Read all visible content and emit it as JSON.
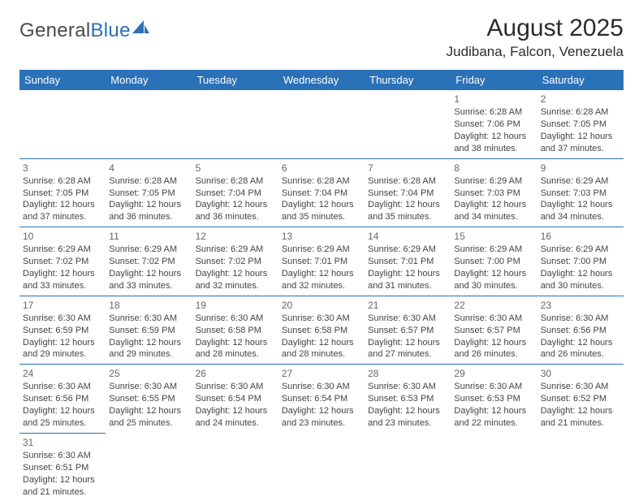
{
  "logo": {
    "text1": "General",
    "text2": "Blue"
  },
  "title": "August 2025",
  "location": "Judibana, Falcon, Venezuela",
  "colors": {
    "accent": "#2a71b8",
    "text": "#333333",
    "header_bg": "#2a71b8",
    "header_fg": "#ffffff"
  },
  "weekdays": [
    "Sunday",
    "Monday",
    "Tuesday",
    "Wednesday",
    "Thursday",
    "Friday",
    "Saturday"
  ],
  "weeks": [
    [
      null,
      null,
      null,
      null,
      null,
      {
        "d": "1",
        "sr": "6:28 AM",
        "ss": "7:06 PM",
        "dl1": "12 hours",
        "dl2": "and 38 minutes."
      },
      {
        "d": "2",
        "sr": "6:28 AM",
        "ss": "7:05 PM",
        "dl1": "12 hours",
        "dl2": "and 37 minutes."
      }
    ],
    [
      {
        "d": "3",
        "sr": "6:28 AM",
        "ss": "7:05 PM",
        "dl1": "12 hours",
        "dl2": "and 37 minutes."
      },
      {
        "d": "4",
        "sr": "6:28 AM",
        "ss": "7:05 PM",
        "dl1": "12 hours",
        "dl2": "and 36 minutes."
      },
      {
        "d": "5",
        "sr": "6:28 AM",
        "ss": "7:04 PM",
        "dl1": "12 hours",
        "dl2": "and 36 minutes."
      },
      {
        "d": "6",
        "sr": "6:28 AM",
        "ss": "7:04 PM",
        "dl1": "12 hours",
        "dl2": "and 35 minutes."
      },
      {
        "d": "7",
        "sr": "6:28 AM",
        "ss": "7:04 PM",
        "dl1": "12 hours",
        "dl2": "and 35 minutes."
      },
      {
        "d": "8",
        "sr": "6:29 AM",
        "ss": "7:03 PM",
        "dl1": "12 hours",
        "dl2": "and 34 minutes."
      },
      {
        "d": "9",
        "sr": "6:29 AM",
        "ss": "7:03 PM",
        "dl1": "12 hours",
        "dl2": "and 34 minutes."
      }
    ],
    [
      {
        "d": "10",
        "sr": "6:29 AM",
        "ss": "7:02 PM",
        "dl1": "12 hours",
        "dl2": "and 33 minutes."
      },
      {
        "d": "11",
        "sr": "6:29 AM",
        "ss": "7:02 PM",
        "dl1": "12 hours",
        "dl2": "and 33 minutes."
      },
      {
        "d": "12",
        "sr": "6:29 AM",
        "ss": "7:02 PM",
        "dl1": "12 hours",
        "dl2": "and 32 minutes."
      },
      {
        "d": "13",
        "sr": "6:29 AM",
        "ss": "7:01 PM",
        "dl1": "12 hours",
        "dl2": "and 32 minutes."
      },
      {
        "d": "14",
        "sr": "6:29 AM",
        "ss": "7:01 PM",
        "dl1": "12 hours",
        "dl2": "and 31 minutes."
      },
      {
        "d": "15",
        "sr": "6:29 AM",
        "ss": "7:00 PM",
        "dl1": "12 hours",
        "dl2": "and 30 minutes."
      },
      {
        "d": "16",
        "sr": "6:29 AM",
        "ss": "7:00 PM",
        "dl1": "12 hours",
        "dl2": "and 30 minutes."
      }
    ],
    [
      {
        "d": "17",
        "sr": "6:30 AM",
        "ss": "6:59 PM",
        "dl1": "12 hours",
        "dl2": "and 29 minutes."
      },
      {
        "d": "18",
        "sr": "6:30 AM",
        "ss": "6:59 PM",
        "dl1": "12 hours",
        "dl2": "and 29 minutes."
      },
      {
        "d": "19",
        "sr": "6:30 AM",
        "ss": "6:58 PM",
        "dl1": "12 hours",
        "dl2": "and 28 minutes."
      },
      {
        "d": "20",
        "sr": "6:30 AM",
        "ss": "6:58 PM",
        "dl1": "12 hours",
        "dl2": "and 28 minutes."
      },
      {
        "d": "21",
        "sr": "6:30 AM",
        "ss": "6:57 PM",
        "dl1": "12 hours",
        "dl2": "and 27 minutes."
      },
      {
        "d": "22",
        "sr": "6:30 AM",
        "ss": "6:57 PM",
        "dl1": "12 hours",
        "dl2": "and 26 minutes."
      },
      {
        "d": "23",
        "sr": "6:30 AM",
        "ss": "6:56 PM",
        "dl1": "12 hours",
        "dl2": "and 26 minutes."
      }
    ],
    [
      {
        "d": "24",
        "sr": "6:30 AM",
        "ss": "6:56 PM",
        "dl1": "12 hours",
        "dl2": "and 25 minutes."
      },
      {
        "d": "25",
        "sr": "6:30 AM",
        "ss": "6:55 PM",
        "dl1": "12 hours",
        "dl2": "and 25 minutes."
      },
      {
        "d": "26",
        "sr": "6:30 AM",
        "ss": "6:54 PM",
        "dl1": "12 hours",
        "dl2": "and 24 minutes."
      },
      {
        "d": "27",
        "sr": "6:30 AM",
        "ss": "6:54 PM",
        "dl1": "12 hours",
        "dl2": "and 23 minutes."
      },
      {
        "d": "28",
        "sr": "6:30 AM",
        "ss": "6:53 PM",
        "dl1": "12 hours",
        "dl2": "and 23 minutes."
      },
      {
        "d": "29",
        "sr": "6:30 AM",
        "ss": "6:53 PM",
        "dl1": "12 hours",
        "dl2": "and 22 minutes."
      },
      {
        "d": "30",
        "sr": "6:30 AM",
        "ss": "6:52 PM",
        "dl1": "12 hours",
        "dl2": "and 21 minutes."
      }
    ],
    [
      {
        "d": "31",
        "sr": "6:30 AM",
        "ss": "6:51 PM",
        "dl1": "12 hours",
        "dl2": "and 21 minutes."
      },
      null,
      null,
      null,
      null,
      null,
      null
    ]
  ],
  "labels": {
    "sunrise": "Sunrise:",
    "sunset": "Sunset:",
    "daylight": "Daylight:"
  }
}
